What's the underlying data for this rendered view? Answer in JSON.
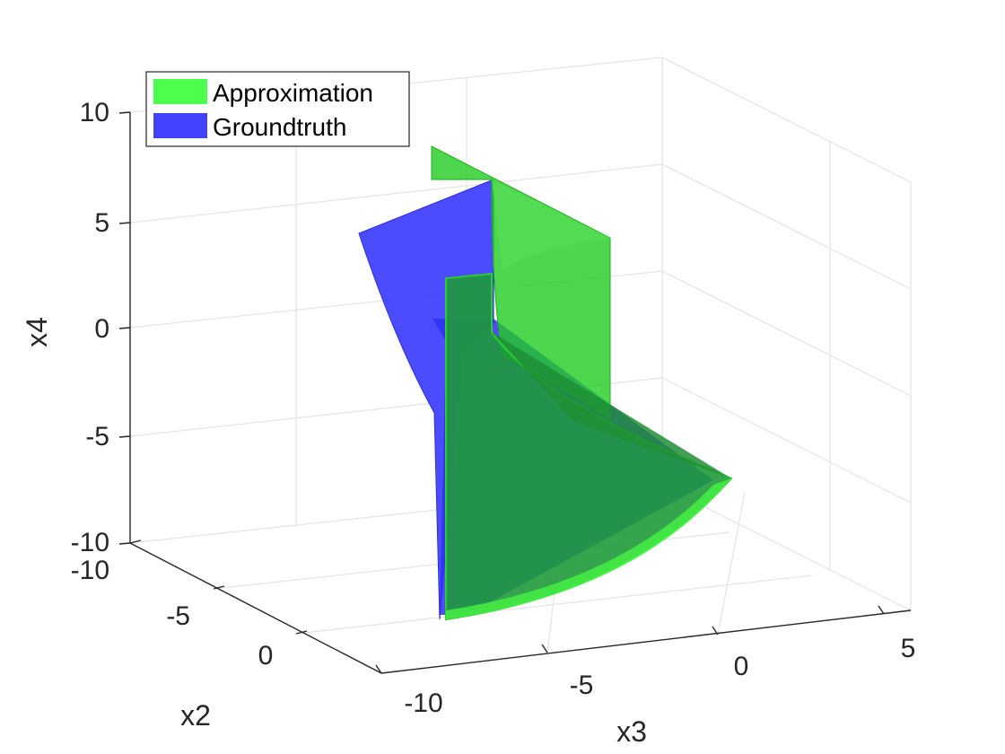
{
  "chart_data": {
    "type": "surface3d",
    "title": "",
    "xlabel": "x3",
    "ylabel": "x2",
    "zlabel": "x4",
    "x_ticks": [
      "-10",
      "-5",
      "0",
      "5"
    ],
    "y_ticks": [
      "-10",
      "-5",
      "0"
    ],
    "z_ticks": [
      "10",
      "5",
      "0",
      "-5",
      "-10"
    ],
    "zlim": [
      -10,
      10
    ],
    "grid": true,
    "legend_position": "top-left",
    "series": [
      {
        "name": "Approximation",
        "color": "#1ad11a"
      },
      {
        "name": "Groundtruth",
        "color": "#1a1aff"
      }
    ],
    "legend_colors": [
      "#4dff4d",
      "#4343ff"
    ]
  }
}
